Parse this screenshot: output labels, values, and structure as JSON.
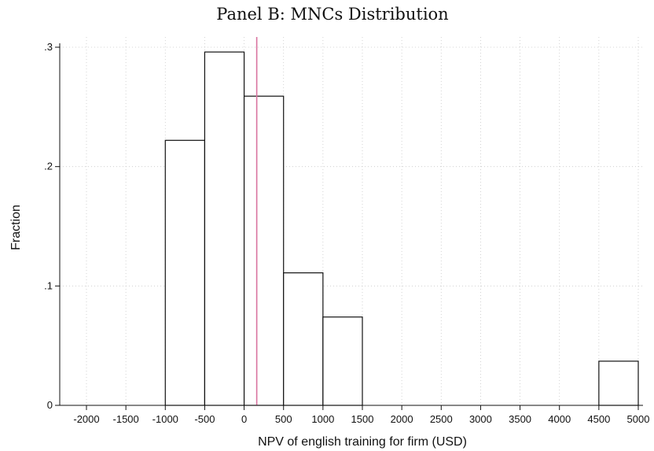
{
  "chart_data": {
    "type": "bar",
    "title": "Panel B: MNCs Distribution",
    "xlabel": "NPV of english training for firm (USD)",
    "ylabel": "Fraction",
    "xlim": [
      -2000,
      5000
    ],
    "ylim": [
      0,
      0.3
    ],
    "x_ticks": [
      -2000,
      -1500,
      -1000,
      -500,
      0,
      500,
      1000,
      1500,
      2000,
      2500,
      3000,
      3500,
      4000,
      4500,
      5000
    ],
    "x_tick_labels": [
      "-2000",
      "-1500",
      "-1000",
      "-500",
      "0",
      "500",
      "1000",
      "1500",
      "2000",
      "2500",
      "3000",
      "3500",
      "4000",
      "4500",
      "5000"
    ],
    "y_ticks": [
      0,
      0.1,
      0.2,
      0.3
    ],
    "y_tick_labels": [
      "0",
      ".1",
      ".2",
      ".3"
    ],
    "grid": true,
    "bins": [
      {
        "from": -1000,
        "to": -500,
        "value": 0.222
      },
      {
        "from": -500,
        "to": 0,
        "value": 0.296
      },
      {
        "from": 0,
        "to": 500,
        "value": 0.259
      },
      {
        "from": 500,
        "to": 1000,
        "value": 0.111
      },
      {
        "from": 1000,
        "to": 1500,
        "value": 0.074
      },
      {
        "from": 4500,
        "to": 5000,
        "value": 0.037
      }
    ],
    "reference_line": {
      "x": 160,
      "color": "#d9739f"
    }
  }
}
